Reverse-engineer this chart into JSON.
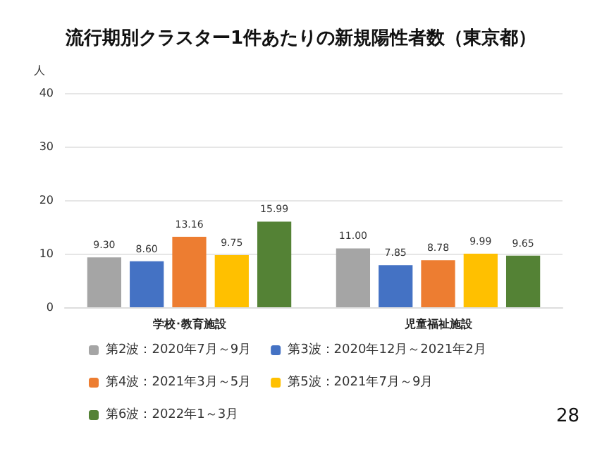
{
  "chart_data": {
    "type": "bar",
    "title": "流行期別クラスター1件あたりの新規陽性者数（東京都）",
    "ylabel": "人",
    "categories": [
      "学校･教育施設",
      "児童福祉施設"
    ],
    "series": [
      {
        "name": "第2波：2020年7月～9月",
        "color": "#a5a5a5",
        "values": [
          9.3,
          11.0
        ]
      },
      {
        "name": "第3波：2020年12月～2021年2月",
        "color": "#4472c4",
        "values": [
          8.6,
          7.85
        ]
      },
      {
        "name": "第4波：2021年3月～5月",
        "color": "#ed7d31",
        "values": [
          13.16,
          8.78
        ]
      },
      {
        "name": "第5波：2021年7月～9月",
        "color": "#ffc000",
        "values": [
          9.75,
          9.99
        ]
      },
      {
        "name": "第6波：2022年1～3月",
        "color": "#548235",
        "values": [
          15.99,
          9.65
        ]
      }
    ],
    "value_labels": [
      [
        "9.30",
        "11.00"
      ],
      [
        "8.60",
        "7.85"
      ],
      [
        "13.16",
        "8.78"
      ],
      [
        "9.75",
        "9.99"
      ],
      [
        "15.99",
        "9.65"
      ]
    ],
    "ylim": [
      0,
      40
    ],
    "yticks": [
      0,
      10,
      20,
      30,
      40
    ],
    "grid": "y",
    "legend": "bottom",
    "annotations": [
      "28"
    ]
  }
}
